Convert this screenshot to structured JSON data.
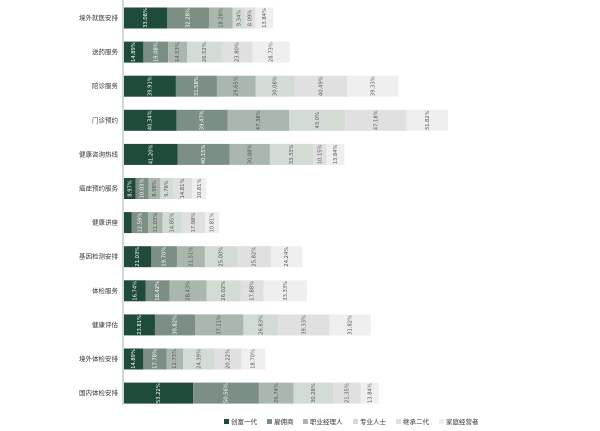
{
  "chart_data": {
    "type": "bar",
    "orientation": "horizontal",
    "stacked": true,
    "legend_position": "bottom",
    "colors": [
      "#1f4b3a",
      "#7c8f85",
      "#aab7ae",
      "#d3dbd5",
      "#e0e0e0",
      "#efefef"
    ],
    "categories": [
      "境外就医安排",
      "送药服务",
      "陪诊服务",
      "门诊预约",
      "健康咨询热线",
      "癌症预约服务",
      "健康讲座",
      "基因检测安排",
      "体检服务",
      "健康评估",
      "境外体检安排",
      "国内体检安排"
    ],
    "series": [
      {
        "name": "创富一代",
        "values": [
          33.08,
          14.89,
          39.91,
          40.34,
          41.2,
          8.97,
          6.0,
          21.03,
          16.74,
          23.81,
          14.89,
          53.22
        ]
      },
      {
        "name": "雇佣商",
        "values": [
          32.28,
          19.08,
          31.58,
          39.47,
          40.15,
          10.03,
          12.59,
          19.7,
          18.42,
          30.82,
          17.78,
          50.56
        ]
      },
      {
        "name": "职业经理人",
        "values": [
          18.28,
          14.53,
          29.65,
          47.38,
          30.88,
          8.98,
          11.03,
          21.51,
          28.43,
          37.21,
          12.73,
          26.74
        ]
      },
      {
        "name": "专业人士",
        "values": [
          9.34,
          26.52,
          30.08,
          43.0,
          33.33,
          9.76,
          14.85,
          25.0,
          26.02,
          26.83,
          24.39,
          30.28
        ]
      },
      {
        "name": "继承二代",
        "values": [
          8.09,
          23.8,
          40.49,
          47.18,
          10.15,
          14.81,
          17.98,
          25.82,
          17.88,
          39.33,
          20.22,
          21.35
        ]
      },
      {
        "name": "家庭经营者",
        "values": [
          13.84,
          28.73,
          39.33,
          31.82,
          13.84,
          10.81,
          10.81,
          24.24,
          33.33,
          31.82,
          18.7,
          13.84
        ]
      }
    ],
    "labels": [
      [
        "33.08%",
        "32.28%",
        "18.28%",
        "9.34%",
        "8.09%",
        "13.84%"
      ],
      [
        "14.89%",
        "19.08%",
        "14.53%",
        "26.52%",
        "23.80%",
        "28.73%"
      ],
      [
        "39.91%",
        "31.58%",
        "29.65%",
        "30.08%",
        "40.49%",
        "39.33%"
      ],
      [
        "40.34%",
        "39.47%",
        "47.38%",
        "43.0%",
        "47.18%",
        "31.82%"
      ],
      [
        "41.20%",
        "40.15%",
        "30.88%",
        "33.33%",
        "10.15%",
        "13.84%"
      ],
      [
        "8.97%",
        "10.03%",
        "8.98%",
        "9.76%",
        "14.81%",
        "10.81%"
      ],
      [
        "",
        "12.59%",
        "11.03%",
        "14.85%",
        "17.98%",
        "10.81%"
      ],
      [
        "21.03%",
        "19.70%",
        "21.51%",
        "25.00%",
        "25.82%",
        "24.24%"
      ],
      [
        "16.74%",
        "18.42%",
        "28.43%",
        "26.02%",
        "17.88%",
        "33.33%"
      ],
      [
        "23.81%",
        "30.82%",
        "37.21%",
        "26.83%",
        "39.33%",
        "31.82%"
      ],
      [
        "14.89%",
        "17.78%",
        "12.73%",
        "24.39%",
        "20.22%",
        "18.70%"
      ],
      [
        "53.22%",
        "50.56%",
        "26.74%",
        "30.28%",
        "21.35%",
        "13.84%"
      ]
    ]
  }
}
